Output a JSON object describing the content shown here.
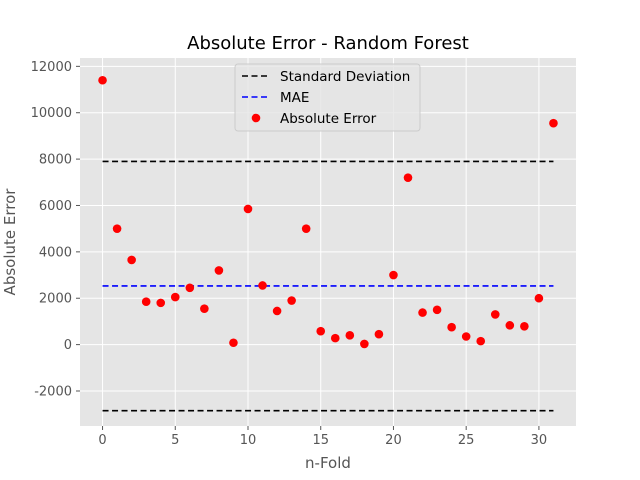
{
  "colors": {
    "background": "#e5e5e5",
    "grid": "#ffffff",
    "std": "#000000",
    "mae": "#0000ff",
    "points": "#ff0000",
    "tick_text": "#555555"
  },
  "chart_data": {
    "type": "scatter",
    "title": "Absolute Error - Random Forest",
    "xlabel": "n-Fold",
    "ylabel": "Absolute Error",
    "xlim": [
      -1.55,
      32.55
    ],
    "ylim": [
      -3510,
      12360
    ],
    "xticks": [
      0,
      5,
      10,
      15,
      20,
      25,
      30
    ],
    "yticks": [
      -2000,
      0,
      2000,
      4000,
      6000,
      8000,
      10000,
      12000
    ],
    "grid": true,
    "legend_position": "top-center",
    "series": [
      {
        "name": "Absolute Error",
        "type": "scatter",
        "color": "#ff0000",
        "x": [
          0,
          1,
          2,
          3,
          4,
          5,
          6,
          7,
          8,
          9,
          10,
          11,
          12,
          13,
          14,
          15,
          16,
          17,
          18,
          19,
          20,
          21,
          22,
          23,
          24,
          25,
          26,
          27,
          28,
          29,
          30,
          31
        ],
        "y": [
          11400,
          5000,
          3650,
          1850,
          1800,
          2050,
          2450,
          1550,
          3200,
          80,
          5850,
          2550,
          1450,
          1900,
          5000,
          580,
          280,
          400,
          30,
          450,
          3000,
          7200,
          1380,
          1500,
          750,
          350,
          150,
          1300,
          830,
          790,
          2000,
          9550
        ]
      }
    ],
    "hlines": [
      {
        "name": "Standard Deviation",
        "style": "dashed",
        "color": "#000000",
        "y": 7900,
        "x_from": 0,
        "x_to": 31
      },
      {
        "name": "Standard Deviation",
        "style": "dashed",
        "color": "#000000",
        "y": -2850,
        "x_from": 0,
        "x_to": 31,
        "show_in_legend": false
      },
      {
        "name": "MAE",
        "style": "dashed",
        "color": "#0000ff",
        "y": 2530,
        "x_from": 0,
        "x_to": 31
      }
    ],
    "legend": [
      {
        "label": "Standard Deviation",
        "kind": "line",
        "color": "#000000"
      },
      {
        "label": "MAE",
        "kind": "line",
        "color": "#0000ff"
      },
      {
        "label": "Absolute Error",
        "kind": "marker",
        "color": "#ff0000"
      }
    ]
  }
}
